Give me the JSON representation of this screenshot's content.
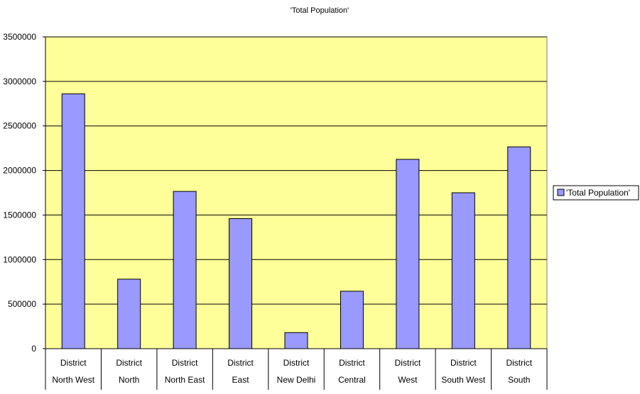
{
  "chart_data": {
    "type": "bar",
    "title": "'Total Population'",
    "xlabel": "",
    "ylabel": "",
    "ylim": [
      0,
      3500000
    ],
    "y_ticks": [
      0,
      500000,
      1000000,
      1500000,
      2000000,
      2500000,
      3000000,
      3500000
    ],
    "y_tick_labels": [
      "0",
      "500000",
      "1000000",
      "1500000",
      "2000000",
      "2500000",
      "3000000",
      "3500000"
    ],
    "categories": [
      [
        "District",
        "North West"
      ],
      [
        "District",
        "North"
      ],
      [
        "District",
        "North East"
      ],
      [
        "District",
        "East"
      ],
      [
        "District",
        "New Delhi"
      ],
      [
        "District",
        "Central"
      ],
      [
        "District",
        "West"
      ],
      [
        "District",
        "South West"
      ],
      [
        "District",
        "South"
      ]
    ],
    "series": [
      {
        "name": "'Total Population'",
        "values": [
          2860000,
          780000,
          1765000,
          1460000,
          180000,
          645000,
          2125000,
          1750000,
          2265000
        ]
      }
    ],
    "grid": true,
    "legend_position": "right",
    "colors": {
      "plot_background": "#FFFF99",
      "bar_fill": "#9999FF",
      "bar_stroke": "#000000",
      "grid": "#000000"
    }
  }
}
